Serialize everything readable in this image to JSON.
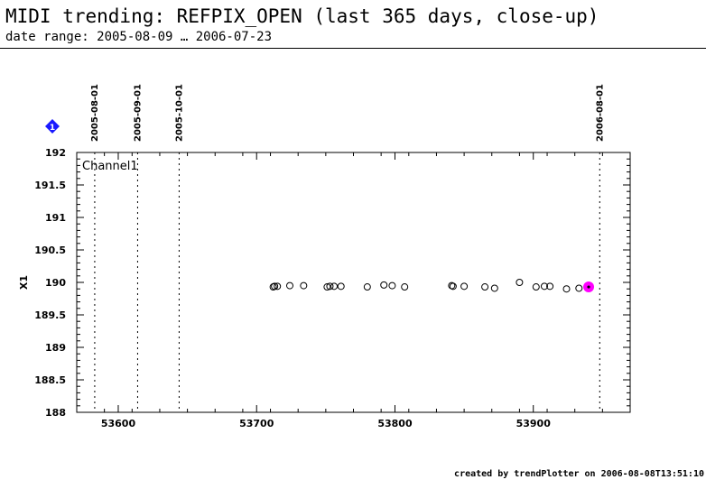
{
  "header": {
    "title": "MIDI trending: REFPIX_OPEN (last 365 days, close-up)",
    "subtitle": "date range: 2005-08-09 … 2006-07-23"
  },
  "footer": {
    "credit": "created by trendPlotter on 2006-08-08T13:51:10"
  },
  "marker_badge": {
    "label": "1",
    "color": "#1a1aff"
  },
  "chart_data": {
    "type": "scatter",
    "title": "MIDI trending: REFPIX_OPEN (last 365 days, close-up)",
    "xlabel": "",
    "ylabel": "X1",
    "xlim": [
      53570,
      53970
    ],
    "ylim": [
      188,
      192
    ],
    "xticks": [
      53600,
      53700,
      53800,
      53900
    ],
    "yticks": [
      188,
      188.5,
      189,
      189.5,
      190,
      190.5,
      191,
      191.5,
      192
    ],
    "ytick_labels": [
      "188",
      "188.5",
      "189",
      "189.5",
      "190",
      "190.5",
      "191",
      "191.5",
      "192"
    ],
    "grid": false,
    "panel_label": "Channel1",
    "date_markers": [
      {
        "label": "2005-08-01",
        "x": 53583
      },
      {
        "label": "2005-09-01",
        "x": 53614
      },
      {
        "label": "2005-10-01",
        "x": 53644
      },
      {
        "label": "2006-08-01",
        "x": 53948
      }
    ],
    "series": [
      {
        "marker": "open-circle",
        "color": "#000000",
        "points": [
          [
            53712,
            189.93
          ],
          [
            53713,
            189.94
          ],
          [
            53715,
            189.94
          ],
          [
            53724,
            189.95
          ],
          [
            53734,
            189.95
          ],
          [
            53751,
            189.93
          ],
          [
            53753,
            189.94
          ],
          [
            53756,
            189.94
          ],
          [
            53761,
            189.94
          ],
          [
            53780,
            189.93
          ],
          [
            53792,
            189.96
          ],
          [
            53798,
            189.95
          ],
          [
            53807,
            189.93
          ],
          [
            53841,
            189.95
          ],
          [
            53842,
            189.94
          ],
          [
            53850,
            189.94
          ],
          [
            53865,
            189.93
          ],
          [
            53872,
            189.91
          ],
          [
            53890,
            190.0
          ],
          [
            53902,
            189.93
          ],
          [
            53908,
            189.94
          ],
          [
            53912,
            189.94
          ],
          [
            53924,
            189.9
          ],
          [
            53933,
            189.91
          ]
        ]
      },
      {
        "marker": "highlight",
        "color": "#ff00ff",
        "points": [
          [
            53940,
            189.93
          ]
        ]
      }
    ]
  }
}
